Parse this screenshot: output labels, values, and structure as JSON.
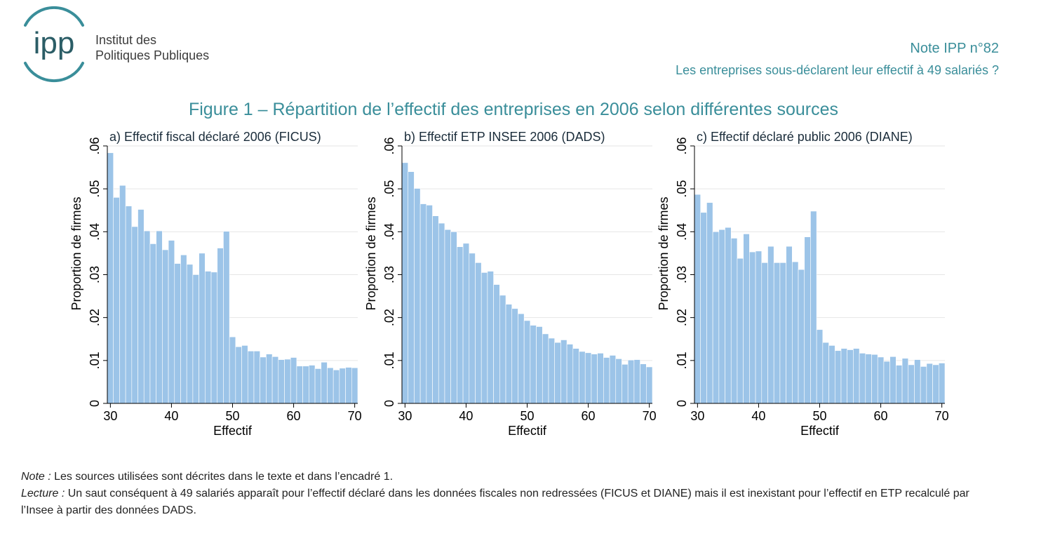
{
  "header": {
    "logo_text": "ipp",
    "institute_line1": "Institut des",
    "institute_line2": "Politiques Publiques",
    "note_number": "Note IPP n°82",
    "note_title": "Les entreprises sous-déclarent leur effectif à 49 salariés ?"
  },
  "figure_title": "Figure 1 – Répartition de l’effectif des entreprises en 2006 selon différentes sources",
  "colors": {
    "accent": "#3a8e9a",
    "bar": "#9cc4e8",
    "bar_edge": "#ffffff",
    "gridline": "#e6e6e6"
  },
  "chart_data": [
    {
      "type": "bar",
      "title": "a) Effectif fiscal déclaré 2006 (FICUS)",
      "xlabel": "Effectif",
      "ylabel": "Proportion de firmes",
      "xlim": [
        29.5,
        70.5
      ],
      "ylim": [
        0,
        0.06
      ],
      "xticks": [
        30,
        40,
        50,
        60,
        70
      ],
      "yticks": [
        0,
        0.01,
        0.02,
        0.03,
        0.04,
        0.05,
        0.06
      ],
      "ytick_labels": [
        "0",
        ".01",
        ".02",
        ".03",
        ".04",
        ".05",
        ".06"
      ],
      "grid": true,
      "x": [
        30,
        31,
        32,
        33,
        34,
        35,
        36,
        37,
        38,
        39,
        40,
        41,
        42,
        43,
        44,
        45,
        46,
        47,
        48,
        49,
        50,
        51,
        52,
        53,
        54,
        55,
        56,
        57,
        58,
        59,
        60,
        61,
        62,
        63,
        64,
        65,
        66,
        67,
        68,
        69,
        70
      ],
      "values": [
        0.0584,
        0.048,
        0.0508,
        0.046,
        0.0412,
        0.0452,
        0.0402,
        0.0372,
        0.0402,
        0.0358,
        0.038,
        0.0326,
        0.0346,
        0.0324,
        0.03,
        0.035,
        0.0308,
        0.0306,
        0.0362,
        0.0401,
        0.0155,
        0.0132,
        0.0135,
        0.0122,
        0.0122,
        0.0108,
        0.0115,
        0.0109,
        0.0102,
        0.0103,
        0.0107,
        0.0087,
        0.0087,
        0.0089,
        0.0081,
        0.0096,
        0.0083,
        0.0078,
        0.0082,
        0.0084,
        0.0083
      ]
    },
    {
      "type": "bar",
      "title": "b) Effectif ETP INSEE 2006 (DADS)",
      "xlabel": "Effectif",
      "ylabel": "Proportion de firmes",
      "xlim": [
        29.5,
        70.5
      ],
      "ylim": [
        0,
        0.06
      ],
      "xticks": [
        30,
        40,
        50,
        60,
        70
      ],
      "yticks": [
        0,
        0.01,
        0.02,
        0.03,
        0.04,
        0.05,
        0.06
      ],
      "ytick_labels": [
        "0",
        ".01",
        ".02",
        ".03",
        ".04",
        ".05",
        ".06"
      ],
      "grid": true,
      "x": [
        30,
        31,
        32,
        33,
        34,
        35,
        36,
        37,
        38,
        39,
        40,
        41,
        42,
        43,
        44,
        45,
        46,
        47,
        48,
        49,
        50,
        51,
        52,
        53,
        54,
        55,
        56,
        57,
        58,
        59,
        60,
        61,
        62,
        63,
        64,
        65,
        66,
        67,
        68,
        69,
        70
      ],
      "values": [
        0.0561,
        0.054,
        0.0501,
        0.0465,
        0.0462,
        0.0437,
        0.042,
        0.0405,
        0.04,
        0.0365,
        0.0373,
        0.035,
        0.0328,
        0.0305,
        0.0308,
        0.0277,
        0.0252,
        0.0231,
        0.0221,
        0.0209,
        0.0193,
        0.0182,
        0.0179,
        0.0162,
        0.0152,
        0.0142,
        0.0148,
        0.0138,
        0.0128,
        0.0121,
        0.0118,
        0.0115,
        0.0117,
        0.0107,
        0.0112,
        0.0104,
        0.0091,
        0.0101,
        0.0102,
        0.0092,
        0.0085
      ]
    },
    {
      "type": "bar",
      "title": "c) Effectif déclaré public 2006 (DIANE)",
      "xlabel": "Effectif",
      "ylabel": "Proportion de firmes",
      "xlim": [
        29.5,
        70.5
      ],
      "ylim": [
        0,
        0.06
      ],
      "xticks": [
        30,
        40,
        50,
        60,
        70
      ],
      "yticks": [
        0,
        0.01,
        0.02,
        0.03,
        0.04,
        0.05,
        0.06
      ],
      "ytick_labels": [
        "0",
        ".01",
        ".02",
        ".03",
        ".04",
        ".05",
        ".06"
      ],
      "grid": true,
      "x": [
        30,
        31,
        32,
        33,
        34,
        35,
        36,
        37,
        38,
        39,
        40,
        41,
        42,
        43,
        44,
        45,
        46,
        47,
        48,
        49,
        50,
        51,
        52,
        53,
        54,
        55,
        56,
        57,
        58,
        59,
        60,
        61,
        62,
        63,
        64,
        65,
        66,
        67,
        68,
        69,
        70
      ],
      "values": [
        0.0487,
        0.0445,
        0.0468,
        0.04,
        0.0405,
        0.041,
        0.0385,
        0.0338,
        0.0395,
        0.0353,
        0.0355,
        0.0328,
        0.0366,
        0.0328,
        0.0328,
        0.0366,
        0.033,
        0.0312,
        0.0388,
        0.0448,
        0.0172,
        0.0142,
        0.0135,
        0.0123,
        0.0128,
        0.0125,
        0.0128,
        0.0117,
        0.0115,
        0.0114,
        0.0108,
        0.0098,
        0.0109,
        0.0089,
        0.0105,
        0.009,
        0.0102,
        0.0086,
        0.0093,
        0.009,
        0.0094
      ]
    }
  ],
  "caption": {
    "note_label": "Note :",
    "note_text": " Les sources utilisées sont décrites dans le texte et dans l’encadré 1.",
    "lecture_label": "Lecture :",
    "lecture_text": " Un saut conséquent à 49 salariés apparaît pour l’effectif déclaré dans les données fiscales non redressées (FICUS et DIANE) mais il est inexistant pour l’effectif en ETP recalculé par l’Insee à partir des données DADS."
  }
}
